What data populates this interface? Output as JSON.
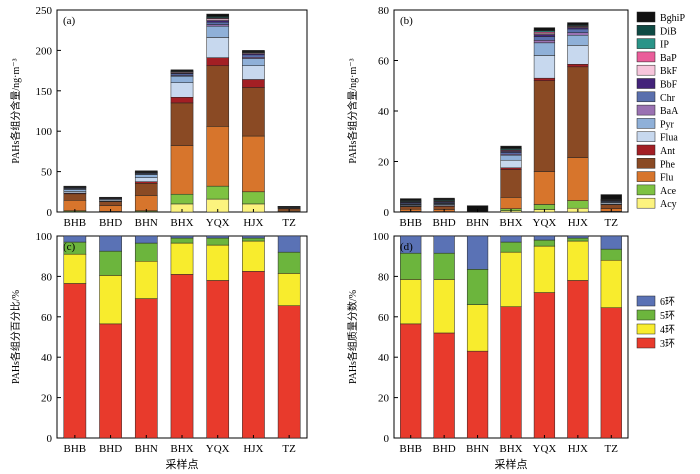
{
  "chart_data": [
    {
      "type": "bar",
      "stacked": true,
      "panel_label": "(a)",
      "ylabel": "PAHs各组分含量/ng·m⁻³",
      "xlabel": "",
      "ylim": [
        0,
        250
      ],
      "yticks": [
        "0",
        "50",
        "100",
        "150",
        "200",
        "250"
      ],
      "categories": [
        "BHB",
        "BHD",
        "BHN",
        "BHX",
        "YQX",
        "HJX",
        "TZ"
      ],
      "series": [
        {
          "name": "Acy",
          "values": [
            0.5,
            0.3,
            0.5,
            10,
            16,
            10,
            0.3
          ]
        },
        {
          "name": "Ace",
          "values": [
            1,
            0.5,
            1,
            12,
            16,
            15,
            0.5
          ]
        },
        {
          "name": "Flu",
          "values": [
            13,
            7,
            19,
            60,
            74,
            69,
            1.5
          ]
        },
        {
          "name": "Phe",
          "values": [
            8,
            5,
            15,
            53,
            75,
            60,
            2
          ]
        },
        {
          "name": "Ant",
          "values": [
            1,
            0.5,
            2,
            7,
            10,
            10,
            0.3
          ]
        },
        {
          "name": "Flua",
          "values": [
            2,
            1.5,
            5,
            18,
            25,
            17,
            0.8
          ]
        },
        {
          "name": "Pyr",
          "values": [
            2.5,
            1,
            4,
            8,
            14,
            9,
            0.5
          ]
        },
        {
          "name": "BaA",
          "values": [
            0.5,
            0.3,
            0.5,
            1,
            2,
            1.5,
            0.1
          ]
        },
        {
          "name": "Chr",
          "values": [
            1,
            0.5,
            1,
            2,
            3,
            3,
            0.2
          ]
        },
        {
          "name": "BbF",
          "values": [
            0.5,
            0.3,
            0.5,
            1,
            2,
            1.5,
            0.1
          ]
        },
        {
          "name": "BkF",
          "values": [
            0.5,
            0.3,
            0.5,
            1,
            2,
            1,
            0.1
          ]
        },
        {
          "name": "BaP",
          "values": [
            0.2,
            0.2,
            0.2,
            0.5,
            1,
            0.5,
            0.1
          ]
        },
        {
          "name": "IP",
          "values": [
            0.5,
            0.3,
            0.5,
            0.7,
            1,
            0.7,
            0.2
          ]
        },
        {
          "name": "DiB",
          "values": [
            0.3,
            0.2,
            0.3,
            0.4,
            1,
            0.4,
            0.1
          ]
        },
        {
          "name": "BghiP",
          "values": [
            0.5,
            0.4,
            1,
            1.4,
            3,
            1.4,
            0.2
          ]
        }
      ]
    },
    {
      "type": "bar",
      "stacked": true,
      "panel_label": "(b)",
      "ylabel": "PAHs各组分含量/ng·m⁻³",
      "xlabel": "",
      "ylim": [
        0,
        80
      ],
      "yticks": [
        "0",
        "20",
        "40",
        "60",
        "80"
      ],
      "categories": [
        "BHB",
        "BHD",
        "BHN",
        "BHX",
        "YQX",
        "HJX",
        "TZ"
      ],
      "series": [
        {
          "name": "Acy",
          "values": [
            0.1,
            0.1,
            0.0,
            0.5,
            1,
            1.5,
            0.1
          ]
        },
        {
          "name": "Ace",
          "values": [
            0.2,
            0.1,
            0.0,
            0.8,
            2,
            3,
            0.2
          ]
        },
        {
          "name": "Flu",
          "values": [
            0.8,
            0.8,
            0.0,
            4.5,
            13,
            17,
            1
          ]
        },
        {
          "name": "Phe",
          "values": [
            1.0,
            1.2,
            0.0,
            11,
            36,
            36,
            1.6
          ]
        },
        {
          "name": "Ant",
          "values": [
            0.2,
            0.3,
            0.0,
            0.7,
            1,
            1,
            0.2
          ]
        },
        {
          "name": "Flua",
          "values": [
            0.3,
            0.4,
            0.0,
            3,
            9,
            7.5,
            0.5
          ]
        },
        {
          "name": "Pyr",
          "values": [
            0.3,
            0.3,
            0.0,
            2,
            5,
            4,
            0.3
          ]
        },
        {
          "name": "BaA",
          "values": [
            0.2,
            0.2,
            0.0,
            0.4,
            1,
            1,
            0.2
          ]
        },
        {
          "name": "Chr",
          "values": [
            0.4,
            0.4,
            0.0,
            0.7,
            1.5,
            1.5,
            0.3
          ]
        },
        {
          "name": "BbF",
          "values": [
            0.3,
            0.3,
            0.0,
            0.4,
            0.8,
            0.5,
            0.2
          ]
        },
        {
          "name": "BkF",
          "values": [
            0.2,
            0.2,
            0.0,
            0.3,
            0.5,
            0.3,
            0.1
          ]
        },
        {
          "name": "BaP",
          "values": [
            0.2,
            0.2,
            0.0,
            0.3,
            0.5,
            0.3,
            0.1
          ]
        },
        {
          "name": "IP",
          "values": [
            0.3,
            0.3,
            0.0,
            0.4,
            0.5,
            0.3,
            0.2
          ]
        },
        {
          "name": "DiB",
          "values": [
            0.2,
            0.2,
            0.0,
            0.3,
            0.2,
            0.2,
            0.1
          ]
        },
        {
          "name": "BghiP",
          "values": [
            0.6,
            0.5,
            2.5,
            0.8,
            1,
            0.9,
            1.8
          ]
        }
      ]
    },
    {
      "type": "bar",
      "stacked": true,
      "panel_label": "(c)",
      "ylabel": "PAHs各组分百分比/%",
      "xlabel": "采样点",
      "ylim": [
        0,
        100
      ],
      "yticks": [
        "0",
        "20",
        "40",
        "60",
        "80",
        "100"
      ],
      "categories": [
        "BHB",
        "BHD",
        "BHN",
        "BHX",
        "YQX",
        "HJX",
        "TZ"
      ],
      "series": [
        {
          "name": "3环",
          "values": [
            76.5,
            56.5,
            69,
            81,
            78,
            82.5,
            65.5
          ]
        },
        {
          "name": "4环",
          "values": [
            14.5,
            24,
            18.5,
            15.5,
            17.5,
            15,
            16
          ]
        },
        {
          "name": "5环",
          "values": [
            6,
            12,
            9,
            2.5,
            3.5,
            1.5,
            10.5
          ]
        },
        {
          "name": "6环",
          "values": [
            3,
            7.5,
            3.5,
            1,
            1,
            1,
            8
          ]
        }
      ]
    },
    {
      "type": "bar",
      "stacked": true,
      "panel_label": "(d)",
      "ylabel": "PAHs各组质量分数/%",
      "xlabel": "采样点",
      "ylim": [
        0,
        100
      ],
      "yticks": [
        "0",
        "20",
        "40",
        "60",
        "80",
        "100"
      ],
      "categories": [
        "BHB",
        "BHD",
        "BHN",
        "BHX",
        "YQX",
        "HJX",
        "TZ"
      ],
      "series": [
        {
          "name": "3环",
          "values": [
            56.5,
            52,
            43,
            65,
            72,
            78,
            64.5
          ]
        },
        {
          "name": "4环",
          "values": [
            22,
            26.5,
            23,
            27,
            23,
            19.5,
            23.5
          ]
        },
        {
          "name": "5环",
          "values": [
            13,
            13,
            17.5,
            5,
            3,
            1.5,
            5.5
          ]
        },
        {
          "name": "6环",
          "values": [
            8.5,
            8.5,
            16.5,
            3,
            2,
            1,
            6.5
          ]
        }
      ]
    }
  ],
  "legend_top": {
    "order": [
      "BghiP",
      "DiB",
      "IP",
      "BaP",
      "BkF",
      "BbF",
      "Chr",
      "BaA",
      "Pyr",
      "Flua",
      "Ant",
      "Phe",
      "Flu",
      "Ace",
      "Acy"
    ],
    "colors": {
      "Acy": "#fcf37e",
      "Ace": "#7ec242",
      "Flu": "#d7752c",
      "Phe": "#8a4a24",
      "Ant": "#a31f24",
      "Flua": "#c7d8ee",
      "Pyr": "#8fb0d8",
      "BaA": "#9a72b2",
      "Chr": "#5a6fad",
      "BbF": "#43237a",
      "BkF": "#f7c6dc",
      "BaP": "#ea5d9a",
      "IP": "#2a9488",
      "DiB": "#0f4a44",
      "BghiP": "#111111"
    }
  },
  "legend_bottom": {
    "order": [
      "6环",
      "5环",
      "4环",
      "3环"
    ],
    "colors": {
      "3环": "#e83a2c",
      "4环": "#f8ec2d",
      "5环": "#6cb53d",
      "6环": "#5a72b5"
    }
  }
}
